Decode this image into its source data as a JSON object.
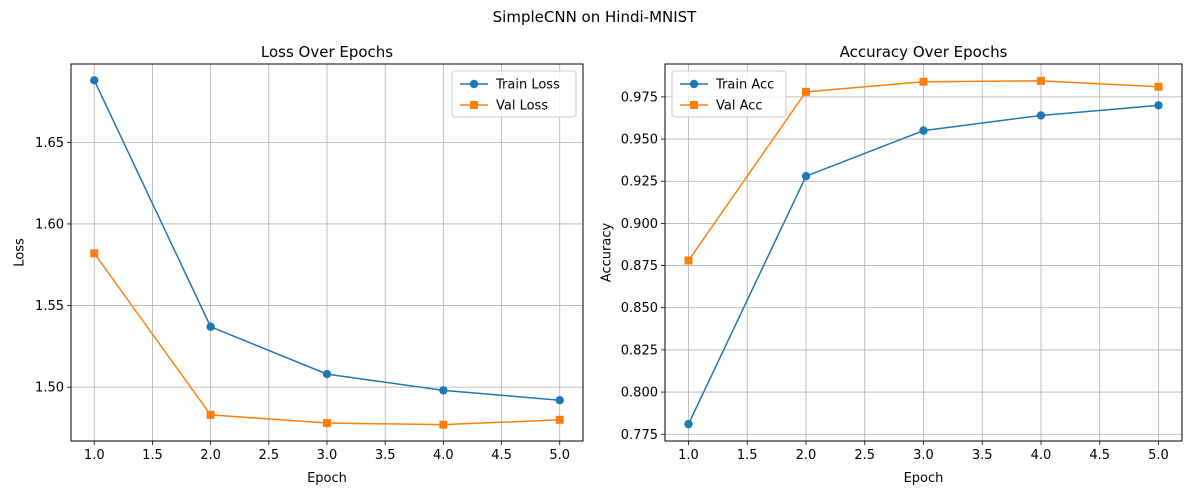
{
  "figure": {
    "suptitle": "SimpleCNN on Hindi-MNIST"
  },
  "chart_data": [
    {
      "type": "line",
      "title": "Loss Over Epochs",
      "xlabel": "Epoch",
      "ylabel": "Loss",
      "xlim": [
        0.8,
        5.2
      ],
      "ylim": [
        1.467,
        1.698
      ],
      "xticks": [
        1.0,
        1.5,
        2.0,
        2.5,
        3.0,
        3.5,
        4.0,
        4.5,
        5.0
      ],
      "yticks": [
        1.5,
        1.55,
        1.6,
        1.65
      ],
      "xtick_labels": [
        "1.0",
        "1.5",
        "2.0",
        "2.5",
        "3.0",
        "3.5",
        "4.0",
        "4.5",
        "5.0"
      ],
      "ytick_labels": [
        "1.50",
        "1.55",
        "1.60",
        "1.65"
      ],
      "grid": true,
      "legend_loc": "upper right",
      "x": [
        1,
        2,
        3,
        4,
        5
      ],
      "series": [
        {
          "name": "Train Loss",
          "color": "#1f77b4",
          "marker": "circle",
          "values": [
            1.688,
            1.537,
            1.508,
            1.498,
            1.492
          ]
        },
        {
          "name": "Val Loss",
          "color": "#ff7f0e",
          "marker": "square",
          "values": [
            1.582,
            1.483,
            1.478,
            1.477,
            1.48
          ]
        }
      ]
    },
    {
      "type": "line",
      "title": "Accuracy Over Epochs",
      "xlabel": "Epoch",
      "ylabel": "Accuracy",
      "xlim": [
        0.8,
        5.2
      ],
      "ylim": [
        0.771,
        0.9945
      ],
      "xticks": [
        1.0,
        1.5,
        2.0,
        2.5,
        3.0,
        3.5,
        4.0,
        4.5,
        5.0
      ],
      "yticks": [
        0.775,
        0.8,
        0.825,
        0.85,
        0.875,
        0.9,
        0.925,
        0.95,
        0.975
      ],
      "xtick_labels": [
        "1.0",
        "1.5",
        "2.0",
        "2.5",
        "3.0",
        "3.5",
        "4.0",
        "4.5",
        "5.0"
      ],
      "ytick_labels": [
        "0.775",
        "0.800",
        "0.825",
        "0.850",
        "0.875",
        "0.900",
        "0.925",
        "0.950",
        "0.975"
      ],
      "grid": true,
      "legend_loc": "upper left",
      "x": [
        1,
        2,
        3,
        4,
        5
      ],
      "series": [
        {
          "name": "Train Acc",
          "color": "#1f77b4",
          "marker": "circle",
          "values": [
            0.781,
            0.928,
            0.955,
            0.964,
            0.97
          ]
        },
        {
          "name": "Val Acc",
          "color": "#ff7f0e",
          "marker": "square",
          "values": [
            0.878,
            0.978,
            0.984,
            0.9845,
            0.981
          ]
        }
      ]
    }
  ]
}
